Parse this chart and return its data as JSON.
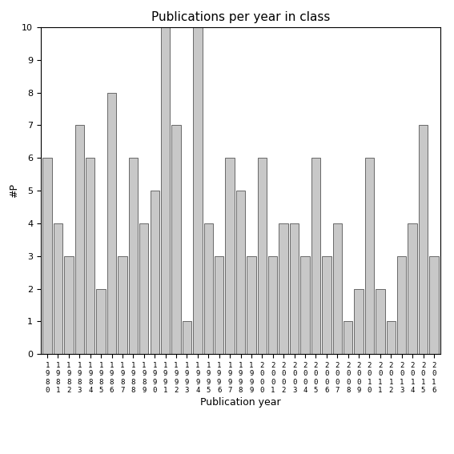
{
  "years": [
    "1980",
    "1981",
    "1982",
    "1983",
    "1984",
    "1985",
    "1986",
    "1987",
    "1988",
    "1989",
    "1990",
    "1991",
    "1992",
    "1993",
    "1994",
    "1995",
    "1996",
    "1997",
    "1998",
    "1999",
    "2000",
    "2001",
    "2002",
    "2003",
    "2004",
    "2005",
    "2006",
    "2007",
    "2008",
    "2009",
    "2010",
    "2011",
    "2012",
    "2013",
    "2014",
    "2015",
    "2016"
  ],
  "values": [
    6,
    4,
    3,
    7,
    6,
    2,
    8,
    3,
    6,
    4,
    5,
    10,
    7,
    1,
    10,
    4,
    3,
    6,
    5,
    3,
    6,
    3,
    4,
    4,
    3,
    6,
    3,
    4,
    1,
    2,
    6,
    2,
    1,
    3,
    4,
    7,
    3
  ],
  "title": "Publications per year in class",
  "xlabel": "Publication year",
  "ylabel": "#P",
  "bar_color": "#c8c8c8",
  "bar_edge_color": "#555555",
  "ylim": [
    0,
    10
  ],
  "yticks": [
    0,
    1,
    2,
    3,
    4,
    5,
    6,
    7,
    8,
    9,
    10
  ],
  "bg_color": "#ffffff",
  "title_fontsize": 11,
  "axis_label_fontsize": 9,
  "tick_fontsize": 8,
  "xtick_fontsize": 6.5
}
